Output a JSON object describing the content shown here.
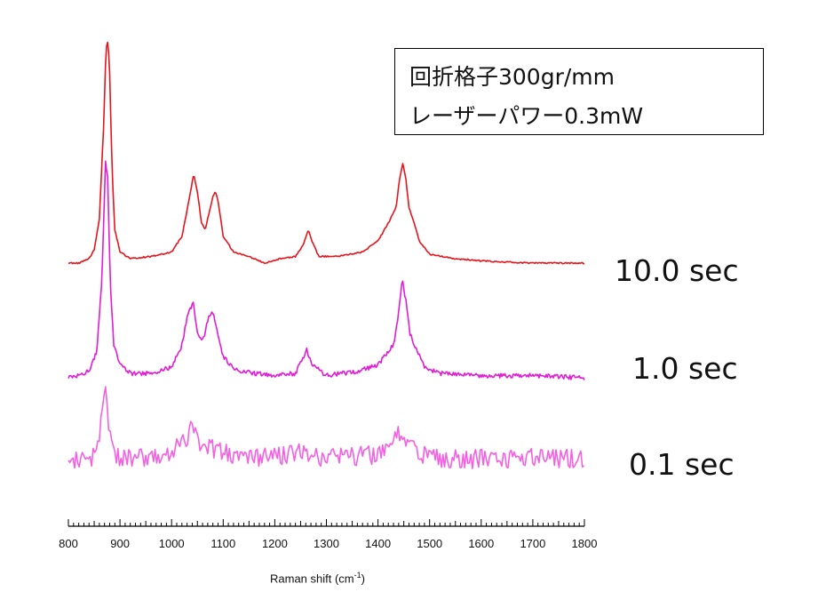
{
  "chart_data": {
    "type": "line",
    "title": "",
    "xlabel_text": "Raman shift (cm",
    "xlabel_sup": "-1",
    "xlabel_close": ")",
    "ylabel": "",
    "xlim": [
      800,
      1800
    ],
    "x_ticks": [
      800,
      900,
      1000,
      1100,
      1200,
      1300,
      1400,
      1500,
      1600,
      1700,
      1800
    ],
    "x_tick_labels": [
      "800",
      "900",
      "1000",
      "1100",
      "1200",
      "1300",
      "1400",
      "1500",
      "1600",
      "1700",
      "1800"
    ],
    "annotation": {
      "line1": "回折格子300gr/mm",
      "line2": "レーザーパワー0.3mW"
    },
    "series": [
      {
        "name": "10.0 sec",
        "color": "#e8131b",
        "points": [
          [
            800,
            0.0
          ],
          [
            820,
            0.0
          ],
          [
            840,
            0.02
          ],
          [
            850,
            0.06
          ],
          [
            860,
            0.2
          ],
          [
            868,
            0.6
          ],
          [
            873,
            0.97
          ],
          [
            877,
            1.0
          ],
          [
            880,
            0.85
          ],
          [
            885,
            0.4
          ],
          [
            890,
            0.15
          ],
          [
            900,
            0.05
          ],
          [
            920,
            0.02
          ],
          [
            960,
            0.03
          ],
          [
            1000,
            0.05
          ],
          [
            1020,
            0.12
          ],
          [
            1035,
            0.3
          ],
          [
            1043,
            0.4
          ],
          [
            1050,
            0.32
          ],
          [
            1058,
            0.18
          ],
          [
            1065,
            0.15
          ],
          [
            1072,
            0.22
          ],
          [
            1080,
            0.3
          ],
          [
            1085,
            0.32
          ],
          [
            1090,
            0.28
          ],
          [
            1100,
            0.12
          ],
          [
            1120,
            0.05
          ],
          [
            1150,
            0.03
          ],
          [
            1180,
            0.0
          ],
          [
            1210,
            0.02
          ],
          [
            1240,
            0.03
          ],
          [
            1255,
            0.08
          ],
          [
            1265,
            0.15
          ],
          [
            1272,
            0.1
          ],
          [
            1285,
            0.03
          ],
          [
            1320,
            0.03
          ],
          [
            1370,
            0.05
          ],
          [
            1400,
            0.1
          ],
          [
            1420,
            0.18
          ],
          [
            1435,
            0.25
          ],
          [
            1442,
            0.38
          ],
          [
            1448,
            0.45
          ],
          [
            1454,
            0.38
          ],
          [
            1460,
            0.25
          ],
          [
            1470,
            0.18
          ],
          [
            1480,
            0.1
          ],
          [
            1500,
            0.04
          ],
          [
            1550,
            0.02
          ],
          [
            1600,
            0.01
          ],
          [
            1700,
            0.0
          ],
          [
            1800,
            0.0
          ]
        ]
      },
      {
        "name": "1.0 sec",
        "color": "#e21bd6",
        "points": [
          [
            800,
            0.0
          ],
          [
            820,
            0.01
          ],
          [
            840,
            0.03
          ],
          [
            855,
            0.12
          ],
          [
            865,
            0.45
          ],
          [
            872,
            1.0
          ],
          [
            876,
            0.92
          ],
          [
            881,
            0.45
          ],
          [
            888,
            0.15
          ],
          [
            900,
            0.06
          ],
          [
            920,
            0.02
          ],
          [
            960,
            0.02
          ],
          [
            1000,
            0.05
          ],
          [
            1020,
            0.15
          ],
          [
            1032,
            0.3
          ],
          [
            1042,
            0.34
          ],
          [
            1050,
            0.2
          ],
          [
            1058,
            0.17
          ],
          [
            1064,
            0.2
          ],
          [
            1072,
            0.28
          ],
          [
            1080,
            0.3
          ],
          [
            1088,
            0.22
          ],
          [
            1100,
            0.1
          ],
          [
            1120,
            0.04
          ],
          [
            1160,
            0.02
          ],
          [
            1200,
            0.01
          ],
          [
            1240,
            0.02
          ],
          [
            1262,
            0.13
          ],
          [
            1272,
            0.06
          ],
          [
            1300,
            0.01
          ],
          [
            1360,
            0.03
          ],
          [
            1400,
            0.06
          ],
          [
            1430,
            0.15
          ],
          [
            1440,
            0.3
          ],
          [
            1447,
            0.45
          ],
          [
            1455,
            0.34
          ],
          [
            1462,
            0.2
          ],
          [
            1475,
            0.13
          ],
          [
            1490,
            0.05
          ],
          [
            1520,
            0.02
          ],
          [
            1600,
            0.01
          ],
          [
            1700,
            0.01
          ],
          [
            1800,
            0.0
          ]
        ]
      },
      {
        "name": "0.1 sec",
        "color": "#f560e3",
        "points": [
          [
            800,
            0.03
          ],
          [
            820,
            0.05
          ],
          [
            840,
            0.02
          ],
          [
            855,
            0.15
          ],
          [
            865,
            0.5
          ],
          [
            872,
            0.88
          ],
          [
            878,
            0.42
          ],
          [
            888,
            0.12
          ],
          [
            900,
            0.03
          ],
          [
            930,
            0.05
          ],
          [
            960,
            0.04
          ],
          [
            1000,
            0.08
          ],
          [
            1030,
            0.3
          ],
          [
            1045,
            0.45
          ],
          [
            1055,
            0.2
          ],
          [
            1075,
            0.15
          ],
          [
            1100,
            0.12
          ],
          [
            1150,
            0.05
          ],
          [
            1200,
            0.05
          ],
          [
            1250,
            0.12
          ],
          [
            1270,
            0.08
          ],
          [
            1300,
            0.05
          ],
          [
            1400,
            0.08
          ],
          [
            1430,
            0.25
          ],
          [
            1447,
            0.35
          ],
          [
            1460,
            0.22
          ],
          [
            1480,
            0.08
          ],
          [
            1520,
            0.03
          ],
          [
            1600,
            0.04
          ],
          [
            1700,
            0.05
          ],
          [
            1800,
            0.04
          ]
        ]
      }
    ]
  }
}
